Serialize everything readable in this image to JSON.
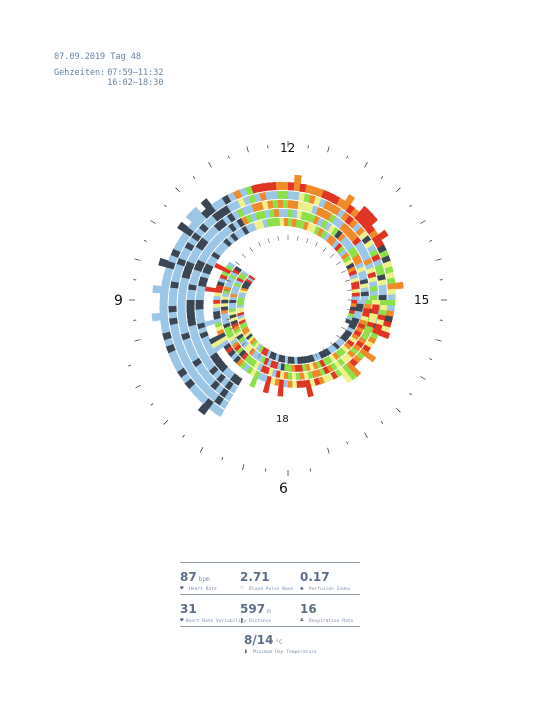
{
  "header": {
    "date_line": "07.09.2019 Tag 48",
    "times_label": "Gehzeiten:",
    "times": [
      "07:59–11:32",
      "16:02–18:30"
    ]
  },
  "clock_labels": {
    "h12": "12",
    "h15": "15",
    "h9": "9",
    "h18": "18",
    "h6": "6"
  },
  "colors": {
    "low": "#3b4654",
    "mid_low": "#9cc6e6",
    "neutral": "#eef08a",
    "mid": "#8ee04a",
    "high": "#f08a2a",
    "peak": "#e03424"
  },
  "stats": {
    "heart_rate": {
      "value": "87",
      "unit": "bpm",
      "label": "Heart Rate",
      "icon": "heart-icon"
    },
    "blood_pulse_wave": {
      "value": "2.71",
      "unit": "",
      "label": "Blood Pulse Wave",
      "icon": "pulse-icon"
    },
    "perfusion_index": {
      "value": "0.17",
      "unit": "",
      "label": "Perfusion Index",
      "icon": "drop-icon"
    },
    "hrv": {
      "value": "31",
      "unit": "",
      "label": "Heart Rate Variability",
      "icon": "heart-wave-icon"
    },
    "distance": {
      "value": "597",
      "unit": "m",
      "label": "Distance",
      "icon": "footsteps-icon"
    },
    "respiration": {
      "value": "16",
      "unit": "",
      "label": "Respiration Rate",
      "icon": "lungs-icon"
    },
    "temperature": {
      "value": "8/14",
      "unit": "°C",
      "label": "Minimum Day Temperature",
      "icon": "thermometer-icon"
    }
  }
}
